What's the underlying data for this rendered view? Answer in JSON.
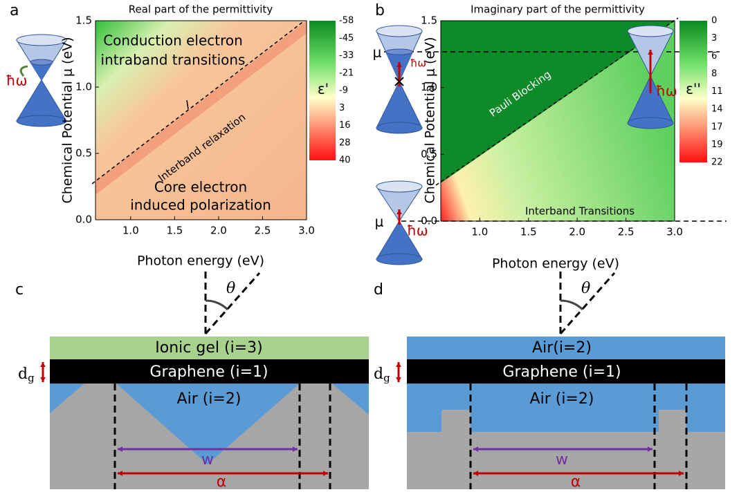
{
  "panels": {
    "a": {
      "label": "a",
      "title": "Real part of the permittivity",
      "y_label": "Chemical Potential μ (eV)",
      "x_label": "Photon energy (eV)",
      "xticks": [
        "1.0",
        "1.5",
        "2.0",
        "2.5",
        "3.0"
      ],
      "yticks": [
        "0.0",
        "0.5",
        "1.0",
        "1.5"
      ],
      "annotations": [
        "Conduction electron",
        "intraband transitions",
        "Interband relaxation",
        "Core electron",
        "induced polarization"
      ],
      "hbar_omega": "ħω",
      "colorbar": {
        "label": "ε'",
        "ticks": [
          "-58",
          "-45",
          "-33",
          "-21",
          "-9",
          "3",
          "16",
          "28",
          "40"
        ]
      }
    },
    "b": {
      "label": "b",
      "title": "Imaginary part of the permittivity",
      "y_label": "Chemical Potential μ (eV)",
      "x_label": "Photon energy (eV)",
      "xticks": [
        "1.0",
        "1.5",
        "2.0",
        "2.5",
        "3.0"
      ],
      "yticks": [
        "0.0",
        "0.5",
        "1.0",
        "1.5"
      ],
      "annotations": [
        "Pauli Blocking",
        "Interband Transitions"
      ],
      "mu": "μ",
      "hbar_omega": "ħω",
      "colorbar": {
        "label": "ε''",
        "ticks": [
          "0",
          "3",
          "6",
          "8",
          "11",
          "14",
          "17",
          "19",
          "22"
        ]
      }
    },
    "c": {
      "label": "c",
      "theta": "θ",
      "layers": [
        "Ionic gel  (i=3)",
        "Graphene (i=1)",
        "Air (i=2)"
      ],
      "thickness": "d",
      "thickness_sub": "g",
      "width": "w",
      "period": "α"
    },
    "d": {
      "label": "d",
      "theta": "θ",
      "layers": [
        "Air(i=2)",
        "Graphene (i=1)",
        "Air (i=2)"
      ],
      "thickness": "d",
      "thickness_sub": "g",
      "width": "w",
      "period": "α"
    }
  }
}
